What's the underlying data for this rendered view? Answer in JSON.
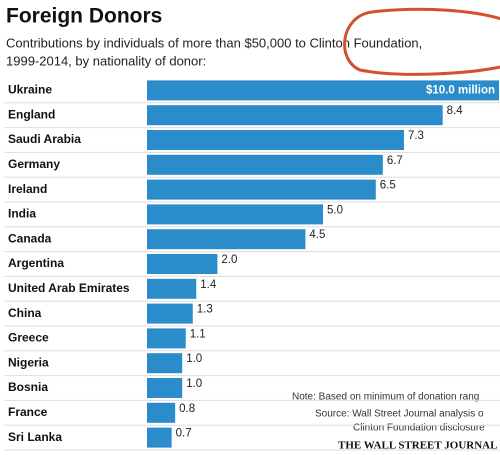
{
  "chart_data": {
    "type": "bar",
    "title": "Foreign Donors",
    "subtitle": [
      "Contributions by individuals of more than $50,000 to Clinton Foundation,",
      "1999-2014, by nationality of donor:"
    ],
    "categories": [
      "Ukraine",
      "England",
      "Saudi Arabia",
      "Germany",
      "Ireland",
      "India",
      "Canada",
      "Argentina",
      "United Arab Emirates",
      "China",
      "Greece",
      "Nigeria",
      "Bosnia",
      "France",
      "Sri Lanka"
    ],
    "values": [
      10.0,
      8.4,
      7.3,
      6.7,
      6.5,
      5.0,
      4.5,
      2.0,
      1.4,
      1.3,
      1.1,
      1.0,
      1.0,
      0.8,
      0.7
    ],
    "value_labels": [
      "$10.0 million",
      "8.4",
      "7.3",
      "6.7",
      "6.5",
      "5.0",
      "4.5",
      "2.0",
      "1.4",
      "1.3",
      "1.1",
      "1.0",
      "1.0",
      "0.8",
      "0.7"
    ],
    "color": "#2b8ccb",
    "notes": [
      "Note: Based on minimum of donation rang",
      "Source: Wall Street Journal analysis o",
      "Clinton Foundation disclosure"
    ],
    "source_brand": "THE WALL STREET JOURNAL"
  }
}
